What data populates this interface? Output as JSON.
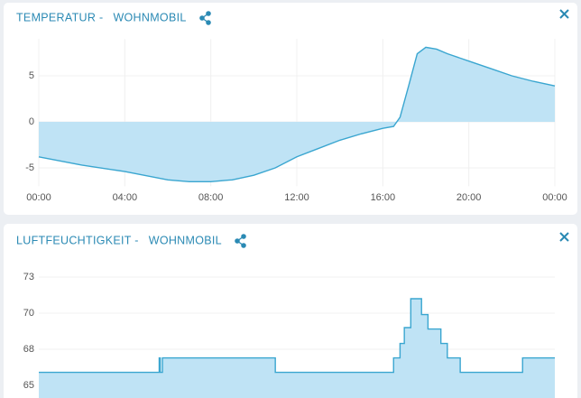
{
  "chart_data": [
    {
      "type": "area",
      "title": "TEMPERATUR -",
      "subtitle": "WOHNMOBIL",
      "xlim": [
        0,
        24
      ],
      "xticks": [
        {
          "value": 0,
          "label": "00:00"
        },
        {
          "value": 4,
          "label": "04:00"
        },
        {
          "value": 8,
          "label": "08:00"
        },
        {
          "value": 12,
          "label": "12:00"
        },
        {
          "value": 16,
          "label": "16:00"
        },
        {
          "value": 20,
          "label": "20:00"
        },
        {
          "value": 24,
          "label": "00:00"
        }
      ],
      "ylim": [
        -7,
        9
      ],
      "yticks": [
        -5,
        0,
        5
      ],
      "grid": true,
      "baseline": 0,
      "series": [
        {
          "color": "#3aa6d0",
          "x": [
            0,
            2,
            4,
            6,
            7,
            8,
            9,
            10,
            11,
            12,
            13,
            14,
            15,
            16,
            16.5,
            16.8,
            17.2,
            17.6,
            18,
            18.5,
            19,
            20,
            21,
            22,
            23,
            24
          ],
          "values": [
            -3.8,
            -4.7,
            -5.4,
            -6.3,
            -6.5,
            -6.5,
            -6.3,
            -5.8,
            -5.0,
            -3.8,
            -2.9,
            -2.0,
            -1.3,
            -0.7,
            -0.5,
            0.5,
            3.9,
            7.4,
            8.1,
            7.9,
            7.4,
            6.6,
            5.8,
            5.0,
            4.4,
            3.9
          ]
        }
      ]
    },
    {
      "type": "area",
      "title": "LUFTFEUCHTIGKEIT -",
      "subtitle": "WOHNMOBIL",
      "xlim": [
        0,
        24
      ],
      "ylim": [
        64,
        74
      ],
      "yticks": [
        {
          "value": 72.5,
          "label": "73"
        },
        {
          "value": 70,
          "label": "70"
        },
        {
          "value": 67.5,
          "label": "68"
        },
        {
          "value": 65,
          "label": "65"
        }
      ],
      "grid": true,
      "series": [
        {
          "color": "#3aa6d0",
          "x": [
            0,
            5.6,
            5.6,
            5.65,
            5.65,
            5.75,
            5.75,
            11,
            11,
            16.5,
            16.5,
            16.8,
            16.8,
            17.0,
            17.0,
            17.3,
            17.3,
            17.8,
            17.8,
            18.1,
            18.1,
            18.7,
            18.7,
            19.0,
            19.0,
            19.6,
            19.6,
            22.5,
            22.5,
            24
          ],
          "values": [
            65.9,
            65.9,
            66.9,
            66.9,
            65.9,
            65.9,
            66.9,
            66.9,
            65.9,
            65.9,
            66.9,
            66.9,
            67.9,
            67.9,
            69.0,
            69.0,
            71.0,
            71.0,
            69.9,
            69.9,
            68.9,
            68.9,
            67.9,
            67.9,
            66.9,
            66.9,
            65.9,
            65.9,
            66.9,
            66.9
          ]
        }
      ]
    }
  ]
}
